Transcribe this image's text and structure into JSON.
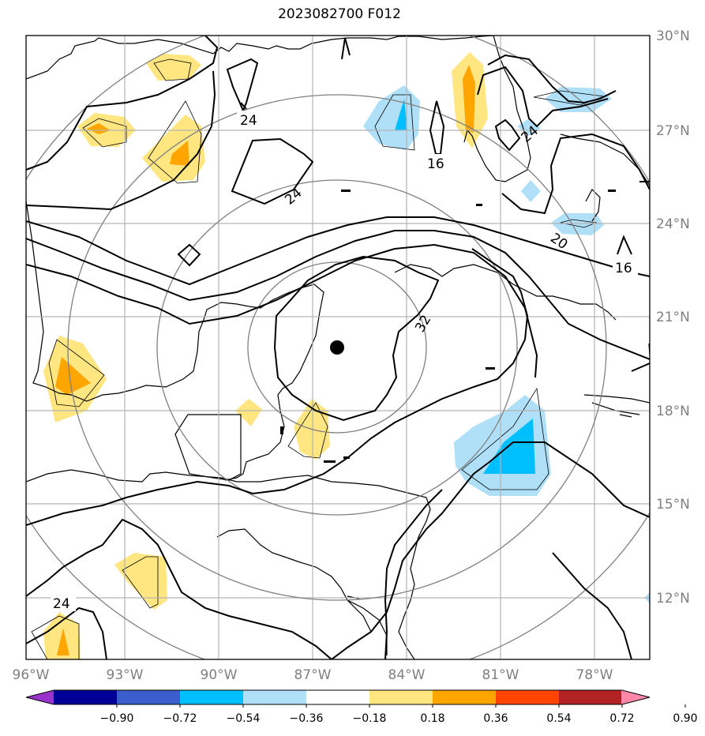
{
  "title": "2023082700 F012",
  "map": {
    "lon_ticks": [
      "96°W",
      "93°W",
      "90°W",
      "87°W",
      "84°W",
      "81°W",
      "78°W"
    ],
    "lat_ticks": [
      "30°N",
      "27°N",
      "24°N",
      "21°N",
      "18°N",
      "15°N",
      "12°N"
    ],
    "contour_labels": [
      "24",
      "16",
      "24",
      "24",
      "20",
      "16",
      "32",
      "24"
    ],
    "center_marker": {
      "lon": -86.3,
      "lat": 19.9
    },
    "colors": {
      "gridline": "#b3b3b3",
      "range_rings": "#808080",
      "contours": "#000000"
    }
  },
  "colorbar": {
    "labels": [
      "−0.90",
      "−0.72",
      "−0.54",
      "−0.36",
      "−0.18",
      "0.18",
      "0.36",
      "0.54",
      "0.72",
      "0.90"
    ],
    "colors": [
      "#9933cc",
      "#000099",
      "#3a5fcd",
      "#00bfff",
      "#b0e0f8",
      "#ffffff",
      "#ffe680",
      "#ffa500",
      "#ff4500",
      "#b22222",
      "#ff88aa"
    ]
  }
}
